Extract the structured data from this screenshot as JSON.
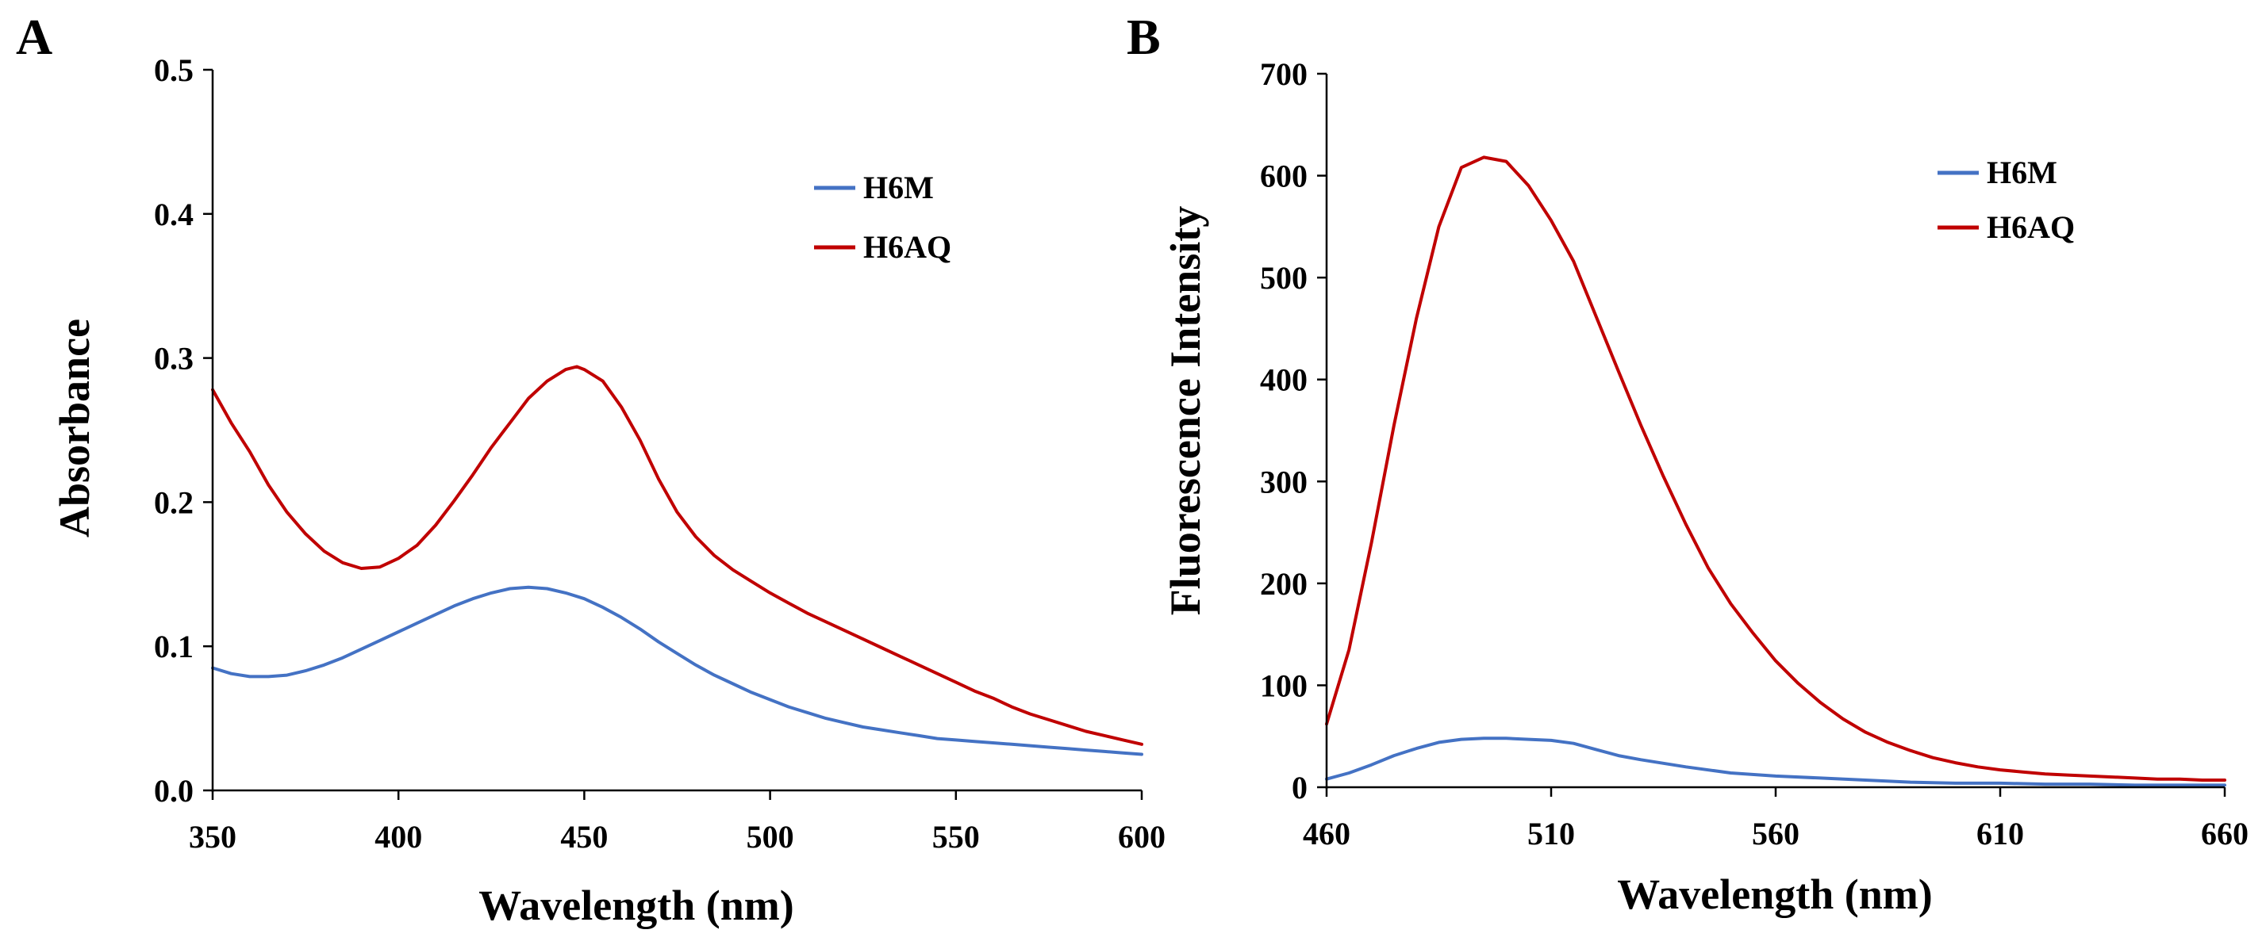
{
  "chart_data": [
    {
      "panel_label": "A",
      "type": "line",
      "title": "",
      "xlabel": "Wavelength (nm)",
      "ylabel": "Absorbance",
      "xlim": [
        350,
        600
      ],
      "ylim": [
        0,
        0.5
      ],
      "xticks": [
        350,
        400,
        450,
        500,
        550,
        600
      ],
      "xtick_labels": [
        "350",
        "400",
        "450",
        "500",
        "550",
        "600"
      ],
      "yticks": [
        0,
        0.1,
        0.2,
        0.3,
        0.4,
        0.5
      ],
      "ytick_labels": [
        "0.0",
        "0.1",
        "0.2",
        "0.3",
        "0.4",
        "0.5"
      ],
      "grid": false,
      "legend": {
        "placement": "top-right"
      },
      "series": [
        {
          "name": "H6M",
          "color": "#4472C4",
          "x": [
            350,
            355,
            360,
            365,
            370,
            375,
            380,
            385,
            390,
            395,
            400,
            405,
            410,
            415,
            420,
            425,
            430,
            435,
            440,
            445,
            450,
            455,
            460,
            465,
            470,
            475,
            480,
            485,
            490,
            495,
            500,
            505,
            510,
            515,
            520,
            525,
            530,
            535,
            540,
            545,
            550,
            555,
            560,
            565,
            570,
            575,
            580,
            585,
            590,
            595,
            600
          ],
          "y": [
            0.085,
            0.081,
            0.079,
            0.079,
            0.08,
            0.083,
            0.087,
            0.092,
            0.098,
            0.104,
            0.11,
            0.116,
            0.122,
            0.128,
            0.133,
            0.137,
            0.14,
            0.141,
            0.14,
            0.137,
            0.133,
            0.127,
            0.12,
            0.112,
            0.103,
            0.095,
            0.087,
            0.08,
            0.074,
            0.068,
            0.063,
            0.058,
            0.054,
            0.05,
            0.047,
            0.044,
            0.042,
            0.04,
            0.038,
            0.036,
            0.035,
            0.034,
            0.033,
            0.032,
            0.031,
            0.03,
            0.029,
            0.028,
            0.027,
            0.026,
            0.025
          ]
        },
        {
          "name": "H6AQ",
          "color": "#C00000",
          "x": [
            350,
            355,
            360,
            365,
            370,
            375,
            380,
            385,
            390,
            395,
            400,
            405,
            410,
            415,
            420,
            425,
            430,
            435,
            440,
            445,
            448,
            450,
            455,
            460,
            465,
            470,
            475,
            480,
            485,
            490,
            495,
            500,
            505,
            510,
            515,
            520,
            525,
            530,
            535,
            540,
            545,
            550,
            555,
            560,
            565,
            570,
            575,
            580,
            585,
            590,
            595,
            600
          ],
          "y": [
            0.278,
            0.255,
            0.235,
            0.212,
            0.193,
            0.178,
            0.166,
            0.158,
            0.154,
            0.155,
            0.161,
            0.17,
            0.184,
            0.201,
            0.219,
            0.238,
            0.255,
            0.272,
            0.284,
            0.292,
            0.294,
            0.292,
            0.284,
            0.266,
            0.243,
            0.216,
            0.193,
            0.176,
            0.163,
            0.153,
            0.145,
            0.137,
            0.13,
            0.123,
            0.117,
            0.111,
            0.105,
            0.099,
            0.093,
            0.087,
            0.081,
            0.075,
            0.069,
            0.064,
            0.058,
            0.053,
            0.049,
            0.045,
            0.041,
            0.038,
            0.035,
            0.032
          ]
        }
      ]
    },
    {
      "panel_label": "B",
      "type": "line",
      "title": "",
      "xlabel": "Wavelength (nm)",
      "ylabel": "Fluorescence Intensity",
      "xlim": [
        460,
        660
      ],
      "ylim": [
        0,
        700
      ],
      "xticks": [
        460,
        510,
        560,
        610,
        660
      ],
      "xtick_labels": [
        "460",
        "510",
        "560",
        "610",
        "660"
      ],
      "yticks": [
        0,
        100,
        200,
        300,
        400,
        500,
        600,
        700
      ],
      "ytick_labels": [
        "0",
        "100",
        "200",
        "300",
        "400",
        "500",
        "600",
        "700"
      ],
      "grid": false,
      "legend": {
        "placement": "top-right"
      },
      "series": [
        {
          "name": "H6M",
          "color": "#4472C4",
          "x": [
            460,
            465,
            470,
            475,
            480,
            485,
            490,
            495,
            500,
            505,
            510,
            515,
            520,
            525,
            530,
            540,
            550,
            560,
            570,
            580,
            590,
            600,
            610,
            620,
            630,
            640,
            650,
            660
          ],
          "y": [
            8,
            14,
            22,
            31,
            38,
            44,
            47,
            48,
            48,
            47,
            46,
            43,
            37,
            31,
            27,
            20,
            14,
            11,
            9,
            7,
            5,
            4,
            4,
            3,
            3,
            2,
            2,
            2
          ]
        },
        {
          "name": "H6AQ",
          "color": "#C00000",
          "x": [
            460,
            465,
            470,
            475,
            480,
            485,
            490,
            495,
            500,
            505,
            510,
            515,
            520,
            525,
            530,
            535,
            540,
            545,
            550,
            555,
            560,
            565,
            570,
            575,
            580,
            585,
            590,
            595,
            600,
            605,
            610,
            615,
            620,
            625,
            630,
            635,
            640,
            645,
            650,
            655,
            660
          ],
          "y": [
            62,
            135,
            240,
            355,
            460,
            550,
            608,
            618,
            614,
            590,
            556,
            516,
            462,
            408,
            355,
            305,
            258,
            215,
            180,
            151,
            124,
            102,
            83,
            67,
            54,
            44,
            36,
            29,
            24,
            20,
            17,
            15,
            13,
            12,
            11,
            10,
            9,
            8,
            8,
            7,
            7
          ]
        }
      ]
    }
  ]
}
